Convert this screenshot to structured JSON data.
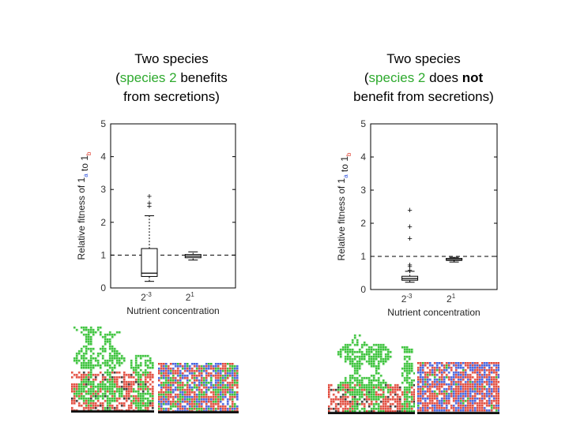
{
  "panels": [
    {
      "title": {
        "line1": "Two species",
        "open_paren": "(",
        "species_label": "species 2",
        "line2_rest": " benefits",
        "line3": "from secretions)"
      }
    },
    {
      "title": {
        "line1": "Two species",
        "open_paren": "(",
        "species_label": "species 2",
        "line2_mid": " does ",
        "line2_bold": "not",
        "line3": "benefit from secretions)"
      }
    }
  ],
  "colors": {
    "species_1a": "#3355dd",
    "species_1b": "#e03a2a",
    "species_2": "#22bb22",
    "reference_line": "#000000"
  },
  "chart_data": [
    {
      "type": "box",
      "ylabel": {
        "prefix": "Relative fitness of 1",
        "sub_a": "a",
        "mid": " to 1",
        "sub_b": "b"
      },
      "xlabel": "Nutrient concentration",
      "categories": [
        {
          "base": "2",
          "exp": "-3"
        },
        {
          "base": "2",
          "exp": "1"
        }
      ],
      "yticks": [
        "0",
        "1",
        "2",
        "3",
        "4",
        "5"
      ],
      "ylim": [
        0,
        5
      ],
      "reference_line": 1,
      "boxes": [
        {
          "q1": 0.35,
          "median": 0.45,
          "q3": 1.2,
          "whisker_low": 0.2,
          "whisker_high": 2.2,
          "outliers": [
            2.5,
            2.6,
            2.8
          ]
        },
        {
          "q1": 0.92,
          "median": 0.97,
          "q3": 1.02,
          "whisker_low": 0.85,
          "whisker_high": 1.1,
          "outliers": []
        }
      ]
    },
    {
      "type": "box",
      "ylabel": {
        "prefix": "Relative fitness of 1",
        "sub_a": "a",
        "mid": " to 1",
        "sub_b": "b"
      },
      "xlabel": "Nutrient concentration",
      "categories": [
        {
          "base": "2",
          "exp": "-3"
        },
        {
          "base": "2",
          "exp": "1"
        }
      ],
      "yticks": [
        "0",
        "1",
        "2",
        "3",
        "4",
        "5"
      ],
      "ylim": [
        0,
        5
      ],
      "reference_line": 1,
      "boxes": [
        {
          "q1": 0.28,
          "median": 0.33,
          "q3": 0.4,
          "whisker_low": 0.22,
          "whisker_high": 0.55,
          "outliers": [
            0.6,
            0.7,
            0.75,
            1.55,
            1.9,
            2.4
          ]
        },
        {
          "q1": 0.88,
          "median": 0.9,
          "q3": 0.94,
          "whisker_low": 0.83,
          "whisker_high": 0.97,
          "outliers": []
        }
      ]
    }
  ]
}
